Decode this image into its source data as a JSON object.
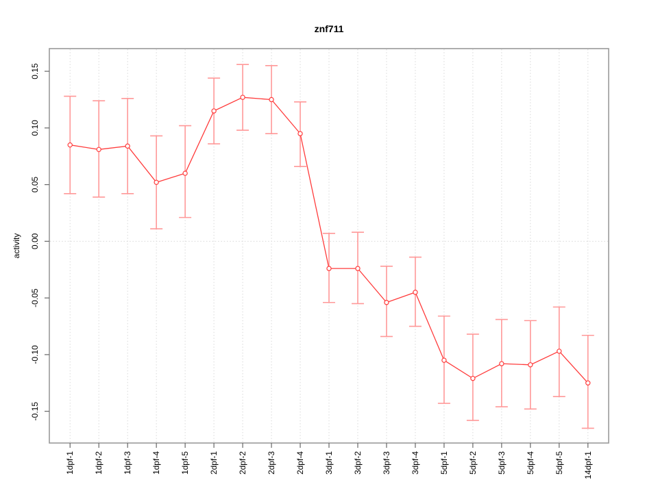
{
  "chart_data": {
    "type": "line",
    "title": "znf711",
    "xlabel": "",
    "ylabel": "activity",
    "legend": "none",
    "marker": "open-circle",
    "grid": "dotted vertical gridline at every category; dotted horizontal line at y=0",
    "categories": [
      "1dpf-1",
      "1dpf-2",
      "1dpf-3",
      "1dpf-4",
      "1dpf-5",
      "2dpf-1",
      "2dpf-2",
      "2dpf-3",
      "2dpf-4",
      "3dpf-1",
      "3dpf-2",
      "3dpf-3",
      "3dpf-4",
      "5dpf-1",
      "5dpf-2",
      "5dpf-3",
      "5dpf-4",
      "5dpf-5",
      "14dpf-1"
    ],
    "series": [
      {
        "name": "activity",
        "values": [
          0.085,
          0.081,
          0.084,
          0.052,
          0.06,
          0.115,
          0.127,
          0.125,
          0.095,
          -0.024,
          -0.024,
          -0.054,
          -0.045,
          -0.105,
          -0.121,
          -0.108,
          -0.109,
          -0.097,
          -0.125
        ],
        "upper": [
          0.128,
          0.124,
          0.126,
          0.093,
          0.102,
          0.144,
          0.156,
          0.155,
          0.123,
          0.007,
          0.008,
          -0.022,
          -0.014,
          -0.066,
          -0.082,
          -0.069,
          -0.07,
          -0.058,
          -0.083
        ],
        "lower": [
          0.042,
          0.039,
          0.042,
          0.011,
          0.021,
          0.086,
          0.098,
          0.095,
          0.066,
          -0.054,
          -0.055,
          -0.084,
          -0.075,
          -0.143,
          -0.158,
          -0.146,
          -0.148,
          -0.137,
          -0.165
        ]
      }
    ],
    "ylim": [
      -0.178,
      0.17
    ],
    "yticks": [
      0.15,
      0.1,
      0.05,
      0.0,
      -0.05,
      -0.1,
      -0.15
    ],
    "ytick_labels": [
      "0.15",
      "0.10",
      "0.05",
      "0.00",
      "-0.05",
      "-0.10",
      "-0.15"
    ],
    "colors": {
      "line": "#ff3b3b",
      "marker_stroke": "#ff3b3b",
      "marker_fill": "#ffffff",
      "error_bar": "#ff9898",
      "grid": "#d8d8d8",
      "box": "#999999",
      "tick": "#666666",
      "text": "#000000",
      "background": "#ffffff"
    }
  }
}
